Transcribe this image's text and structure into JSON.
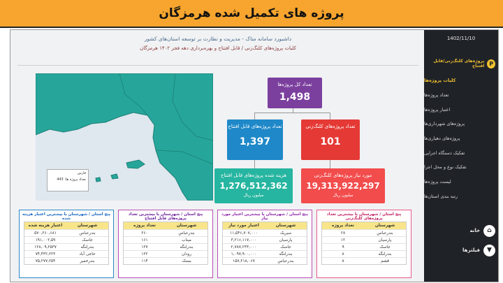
{
  "banner": {
    "title": "پروژه های تکمیل شده هرمزگان"
  },
  "sidebar": {
    "date": "1402/11/10",
    "header": "پروژه‌های کلنگ‌زنی/قابل افتتاح",
    "header_icon": "P",
    "items": [
      {
        "label": "کلیات پروژه‌ها",
        "active": true
      },
      {
        "label": "تعداد پروژه‌ها"
      },
      {
        "label": "اعتبار پروژه‌ها"
      },
      {
        "label": "پروژه‌های شهرداری‌ها"
      },
      {
        "label": "پروژه‌های دهیاری‌ها"
      },
      {
        "label": "تفکیک دستگاه اجرایی"
      },
      {
        "label": "تفکیک نوع و محل اجرا"
      },
      {
        "label": "لیست پروژه‌ها"
      },
      {
        "label": "رتبه بندی استان‌ها"
      }
    ],
    "home_label": "خانه",
    "filter_label": "فیلترها"
  },
  "header": {
    "title": "داشبورد سامانه متاک - مدیریت و نظارت بر توسعه استان‌های کشور",
    "subtitle": "کلیات پروژه‌های کلنگ‌زنی / قابل افتتاح و بهره‌برداری  دهه فجر ۱۴۰۲  هرمزگان"
  },
  "map": {
    "legend_line1": "فارس",
    "legend_line2": "تعداد پروژه ها:   443",
    "color_land": "#26a69a"
  },
  "cards": {
    "total": {
      "title": "تعداد کل پروژه‌ها",
      "value": "1,498",
      "color": "#7b3f9e"
    },
    "openable": {
      "title": "تعداد پروژه‌های قابل افتتاح",
      "value": "1,397",
      "color": "#1e88c8"
    },
    "kolang": {
      "title": "تعداد پروژه‌های کلنگ‌زنی",
      "value": "101",
      "color": "#e53935"
    },
    "cost": {
      "title": "هزینه شده پروژه‌های قابل افتتاح",
      "value": "1,276,512,362",
      "unit": "میلیون ریال",
      "color": "#26b5a0"
    },
    "need": {
      "title": "مورد نیاز پروژه‌های کلنگ‌زنی",
      "value": "19,313,922,297",
      "unit": "میلیون ریال",
      "color": "#f24c4c"
    }
  },
  "tables": [
    {
      "title": "پنج استان / شهرستان با بیشترین تعداد پروژه‌های کلنگ‌زنی",
      "border": "#e85a8a",
      "head_color": "#e85a8a",
      "col1": "شهرستان",
      "col2": "تعداد پروژه",
      "rows": [
        [
          "بندرعباس",
          "۲۸"
        ],
        [
          "پارسیان",
          "۱۲"
        ],
        [
          "جاسک",
          "۹"
        ],
        [
          "بندرلنگه",
          "۸"
        ],
        [
          "قشم",
          "۸"
        ]
      ]
    },
    {
      "title": "پنج استان / شهرستان با بیشترین اعتبار مورد نیاز",
      "border": "#b94fb5",
      "head_color": "#b94fb5",
      "col1": "شهرستان",
      "col2": "اعتبار مورد نیاز",
      "rows": [
        [
          "سیریک",
          "۱۱,۵۴۶,۷۰۷,۰۰۰"
        ],
        [
          "پارسیان",
          "۳,۲۱۶,۱۱۷,۰۰۰"
        ],
        [
          "جاسک",
          "۲,۷۸۷,۲۳۳,۰۰۰"
        ],
        [
          "بندرلنگه",
          "۱,۰۹۷,۹۰۰,۰۰۰"
        ],
        [
          "بندرعباس",
          "۱۵۷,۲۱۸,۰۶۷"
        ]
      ]
    },
    {
      "title": "پنج استان / شهرستان با بیشترین تعداد پروژه‌های قابل افتتاح",
      "border": "#b94fb5",
      "head_color": "#8e44ad",
      "col1": "شهرستان",
      "col2": "تعداد پروژه",
      "rows": [
        [
          "بندرعباس",
          "۲۶۰"
        ],
        [
          "میناب",
          "۱۶۱"
        ],
        [
          "بندرلنگه",
          "۱۲۷"
        ],
        [
          "رودان",
          "۱۲۲"
        ],
        [
          "بستک",
          "۱۱۴"
        ]
      ]
    },
    {
      "title": "پنج استان / شهرستان با بیشترین اعتبار هزینه شده",
      "border": "#2a88c8",
      "head_color": "#2a78b8",
      "col1": "شهرستان",
      "col2": "اعتبار هزینه شده",
      "rows": [
        [
          "بندرعباس",
          "۵۷۰,۲۶۰,۶۸۱"
        ],
        [
          "جاسک",
          "۱۹۱,۰۰۲,۵۹"
        ],
        [
          "بندرلنگه",
          "۱۲۸,۰۹,۲۵۳۷"
        ],
        [
          "حاجی آباد",
          "۷۴,۴۳۲,۲۲۳"
        ],
        [
          "بندرخمیر",
          "۷۵,۲۷۷,۲۵۴"
        ]
      ]
    }
  ]
}
